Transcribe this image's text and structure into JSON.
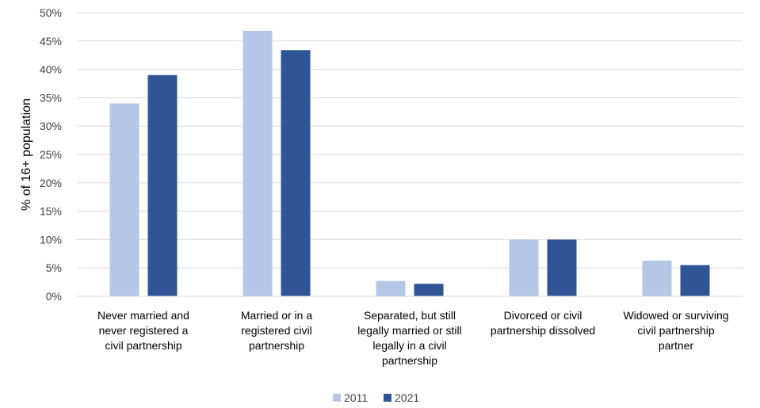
{
  "chart_data": {
    "type": "bar",
    "title": "",
    "xlabel": "",
    "ylabel": "% of 16+ population",
    "ylim": [
      0,
      50
    ],
    "yticks": [
      "0%",
      "5%",
      "10%",
      "15%",
      "20%",
      "25%",
      "30%",
      "35%",
      "40%",
      "45%",
      "50%"
    ],
    "grid": true,
    "legend_position": "bottom",
    "categories": [
      [
        "Never married and",
        "never registered a",
        "civil partnership"
      ],
      [
        "Married or in a",
        "registered civil",
        "partnership"
      ],
      [
        "Separated, but still",
        "legally married or still",
        "legally in a civil",
        "partnership"
      ],
      [
        "Divorced or civil",
        "partnership dissolved"
      ],
      [
        "Widowed or surviving",
        "civil partnership",
        "partner"
      ]
    ],
    "series": [
      {
        "name": "2011",
        "color": "#b4c7e7",
        "values": [
          34.0,
          46.8,
          2.7,
          10.0,
          6.3
        ]
      },
      {
        "name": "2021",
        "color": "#2f5597",
        "values": [
          39.0,
          43.4,
          2.2,
          10.0,
          5.5
        ]
      }
    ]
  }
}
